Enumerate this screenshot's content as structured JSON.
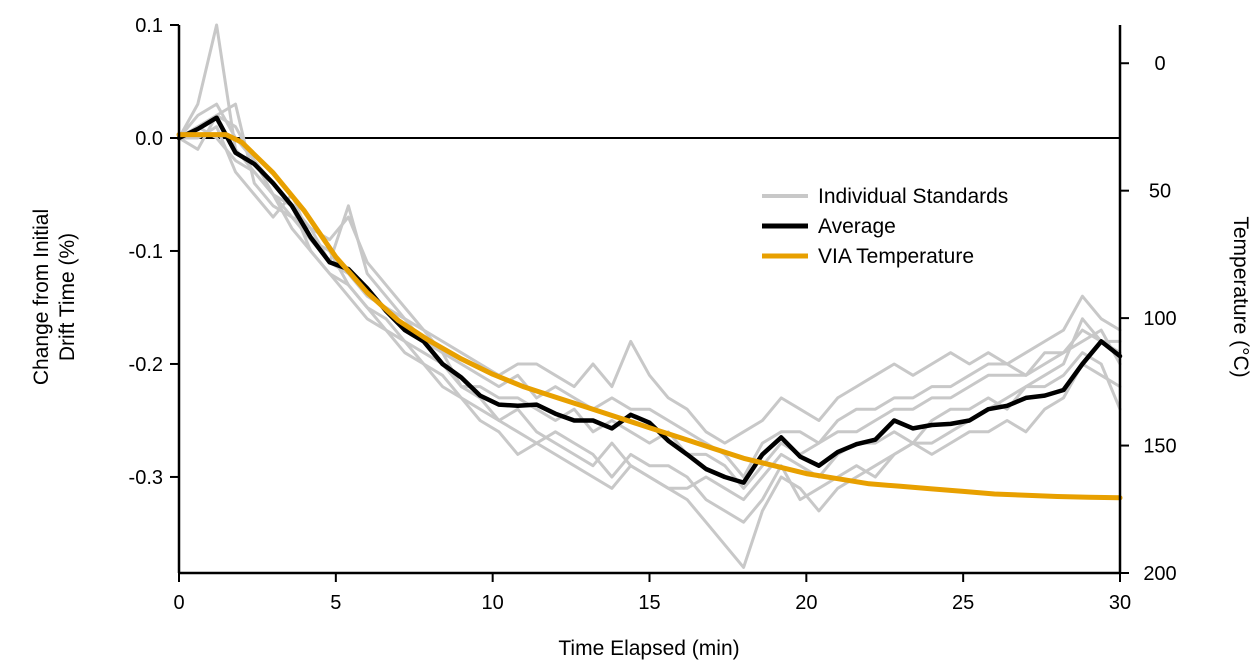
{
  "chart_data": {
    "type": "line",
    "xlabel": "Time Elapsed (min)",
    "ylabel_lines": [
      "Change from Initial",
      "Drift Time (%)"
    ],
    "y2label": "Temperature (°C)",
    "xlim": [
      0,
      30
    ],
    "ylim": [
      -0.385,
      0.1
    ],
    "y2lim": [
      -15,
      200
    ],
    "y2_inverted": true,
    "x_ticks": [
      0,
      5,
      10,
      15,
      20,
      25,
      30
    ],
    "x_tick_labels": [
      "0",
      "5",
      "10",
      "15",
      "20",
      "25",
      "30"
    ],
    "y_ticks": [
      0.1,
      0.0,
      -0.1,
      -0.2,
      -0.3
    ],
    "y_tick_labels": [
      "0.1",
      "0.0",
      "-0.1",
      "-0.2",
      "-0.3"
    ],
    "y2_ticks": [
      0,
      50,
      100,
      150,
      200
    ],
    "y2_tick_labels": [
      "0",
      "50",
      "100",
      "150",
      "200"
    ],
    "reference_line_y": 0.0,
    "legend": {
      "placement": "upper-right",
      "entries": [
        {
          "label": "Individual Standards",
          "color": "#c8c8c8"
        },
        {
          "label": "Average",
          "color": "#000000"
        },
        {
          "label": "VIA Temperature",
          "color": "#e8a000"
        }
      ]
    },
    "colors": {
      "standards": "#c8c8c8",
      "average": "#000000",
      "temperature": "#e8a000"
    },
    "series": [
      {
        "name": "Individual Standards",
        "x": [
          0,
          0.6,
          1.2,
          1.8,
          2.4,
          3.0,
          3.6,
          4.2,
          4.8,
          5.4,
          6.0,
          6.6,
          7.2,
          7.8,
          8.4,
          9.0,
          9.6,
          10.2,
          10.8,
          11.4,
          12.0,
          12.6,
          13.2,
          13.8,
          14.4,
          15.0,
          15.6,
          16.2,
          16.8,
          17.4,
          18.0,
          18.6,
          19.2,
          19.8,
          20.4,
          21.0,
          21.6,
          22.2,
          22.8,
          23.4,
          24.0,
          24.6,
          25.2,
          25.8,
          26.4,
          27.0,
          27.6,
          28.2,
          28.8,
          29.4,
          30.0
        ],
        "values": [
          0.0,
          0.03,
          0.1,
          -0.01,
          -0.03,
          -0.05,
          -0.06,
          -0.1,
          -0.12,
          -0.13,
          -0.15,
          -0.16,
          -0.18,
          -0.19,
          -0.2,
          -0.22,
          -0.23,
          -0.25,
          -0.24,
          -0.26,
          -0.27,
          -0.28,
          -0.29,
          -0.27,
          -0.29,
          -0.3,
          -0.31,
          -0.32,
          -0.34,
          -0.36,
          -0.38,
          -0.33,
          -0.3,
          -0.31,
          -0.33,
          -0.31,
          -0.3,
          -0.29,
          -0.28,
          -0.27,
          -0.27,
          -0.26,
          -0.25,
          -0.24,
          -0.23,
          -0.22,
          -0.21,
          -0.2,
          -0.16,
          -0.18,
          -0.19
        ]
      },
      {
        "name": "",
        "x": [
          0,
          0.6,
          1.2,
          1.8,
          2.4,
          3.0,
          3.6,
          4.2,
          4.8,
          5.4,
          6.0,
          6.6,
          7.2,
          7.8,
          8.4,
          9.0,
          9.6,
          10.2,
          10.8,
          11.4,
          12.0,
          12.6,
          13.2,
          13.8,
          14.4,
          15.0,
          15.6,
          16.2,
          16.8,
          17.4,
          18.0,
          18.6,
          19.2,
          19.8,
          20.4,
          21.0,
          21.6,
          22.2,
          22.8,
          23.4,
          24.0,
          24.6,
          25.2,
          25.8,
          26.4,
          27.0,
          27.6,
          28.2,
          28.8,
          29.4,
          30.0
        ],
        "values": [
          0.0,
          -0.01,
          0.02,
          0.03,
          -0.04,
          -0.06,
          -0.07,
          -0.08,
          -0.09,
          -0.07,
          -0.11,
          -0.13,
          -0.15,
          -0.17,
          -0.18,
          -0.19,
          -0.2,
          -0.21,
          -0.2,
          -0.2,
          -0.21,
          -0.22,
          -0.2,
          -0.22,
          -0.18,
          -0.21,
          -0.23,
          -0.24,
          -0.26,
          -0.27,
          -0.26,
          -0.25,
          -0.23,
          -0.24,
          -0.25,
          -0.23,
          -0.22,
          -0.21,
          -0.2,
          -0.21,
          -0.2,
          -0.19,
          -0.2,
          -0.19,
          -0.2,
          -0.19,
          -0.18,
          -0.17,
          -0.14,
          -0.16,
          -0.17
        ]
      },
      {
        "name": "",
        "x": [
          0,
          0.6,
          1.2,
          1.8,
          2.4,
          3.0,
          3.6,
          4.2,
          4.8,
          5.4,
          6.0,
          6.6,
          7.2,
          7.8,
          8.4,
          9.0,
          9.6,
          10.2,
          10.8,
          11.4,
          12.0,
          12.6,
          13.2,
          13.8,
          14.4,
          15.0,
          15.6,
          16.2,
          16.8,
          17.4,
          18.0,
          18.6,
          19.2,
          19.8,
          20.4,
          21.0,
          21.6,
          22.2,
          22.8,
          23.4,
          24.0,
          24.6,
          25.2,
          25.8,
          26.4,
          27.0,
          27.6,
          28.2,
          28.8,
          29.4,
          30.0
        ],
        "values": [
          0.0,
          0.01,
          0.0,
          -0.02,
          -0.03,
          -0.05,
          -0.08,
          -0.1,
          -0.12,
          -0.14,
          -0.16,
          -0.17,
          -0.19,
          -0.2,
          -0.22,
          -0.23,
          -0.24,
          -0.25,
          -0.26,
          -0.27,
          -0.26,
          -0.27,
          -0.28,
          -0.3,
          -0.28,
          -0.29,
          -0.29,
          -0.3,
          -0.32,
          -0.33,
          -0.34,
          -0.32,
          -0.29,
          -0.32,
          -0.31,
          -0.3,
          -0.29,
          -0.3,
          -0.28,
          -0.27,
          -0.28,
          -0.27,
          -0.26,
          -0.26,
          -0.25,
          -0.26,
          -0.24,
          -0.23,
          -0.2,
          -0.21,
          -0.22
        ]
      },
      {
        "name": "",
        "x": [
          0,
          0.6,
          1.2,
          1.8,
          2.4,
          3.0,
          3.6,
          4.2,
          4.8,
          5.4,
          6.0,
          6.6,
          7.2,
          7.8,
          8.4,
          9.0,
          9.6,
          10.2,
          10.8,
          11.4,
          12.0,
          12.6,
          13.2,
          13.8,
          14.4,
          15.0,
          15.6,
          16.2,
          16.8,
          17.4,
          18.0,
          18.6,
          19.2,
          19.8,
          20.4,
          21.0,
          21.6,
          22.2,
          22.8,
          23.4,
          24.0,
          24.6,
          25.2,
          25.8,
          26.4,
          27.0,
          27.6,
          28.2,
          28.8,
          29.4,
          30.0
        ],
        "values": [
          0.0,
          0.02,
          0.03,
          0.0,
          -0.02,
          -0.05,
          -0.07,
          -0.09,
          -0.11,
          -0.12,
          -0.14,
          -0.15,
          -0.16,
          -0.18,
          -0.19,
          -0.22,
          -0.22,
          -0.23,
          -0.23,
          -0.24,
          -0.25,
          -0.24,
          -0.26,
          -0.25,
          -0.26,
          -0.27,
          -0.26,
          -0.28,
          -0.28,
          -0.29,
          -0.31,
          -0.29,
          -0.27,
          -0.28,
          -0.27,
          -0.26,
          -0.26,
          -0.25,
          -0.24,
          -0.24,
          -0.23,
          -0.23,
          -0.22,
          -0.21,
          -0.21,
          -0.21,
          -0.2,
          -0.19,
          -0.18,
          -0.17,
          -0.2
        ]
      },
      {
        "name": "",
        "x": [
          0,
          0.6,
          1.2,
          1.8,
          2.4,
          3.0,
          3.6,
          4.2,
          4.8,
          5.4,
          6.0,
          6.6,
          7.2,
          7.8,
          8.4,
          9.0,
          9.6,
          10.2,
          10.8,
          11.4,
          12.0,
          12.6,
          13.2,
          13.8,
          14.4,
          15.0,
          15.6,
          16.2,
          16.8,
          17.4,
          18.0,
          18.6,
          19.2,
          19.8,
          20.4,
          21.0,
          21.6,
          22.2,
          22.8,
          23.4,
          24.0,
          24.6,
          25.2,
          25.8,
          26.4,
          27.0,
          27.6,
          28.2,
          28.8,
          29.4,
          30.0
        ],
        "values": [
          0.0,
          0.0,
          0.01,
          -0.03,
          -0.05,
          -0.07,
          -0.05,
          -0.09,
          -0.1,
          -0.13,
          -0.15,
          -0.17,
          -0.18,
          -0.2,
          -0.21,
          -0.23,
          -0.25,
          -0.26,
          -0.28,
          -0.27,
          -0.28,
          -0.29,
          -0.3,
          -0.31,
          -0.29,
          -0.3,
          -0.31,
          -0.31,
          -0.3,
          -0.31,
          -0.32,
          -0.3,
          -0.28,
          -0.29,
          -0.3,
          -0.28,
          -0.27,
          -0.27,
          -0.26,
          -0.27,
          -0.25,
          -0.24,
          -0.24,
          -0.23,
          -0.24,
          -0.22,
          -0.22,
          -0.21,
          -0.19,
          -0.2,
          -0.24
        ]
      },
      {
        "name": "",
        "x": [
          0,
          0.6,
          1.2,
          1.8,
          2.4,
          3.0,
          3.6,
          4.2,
          4.8,
          5.4,
          6.0,
          6.6,
          7.2,
          7.8,
          8.4,
          9.0,
          9.6,
          10.2,
          10.8,
          11.4,
          12.0,
          12.6,
          13.2,
          13.8,
          14.4,
          15.0,
          15.6,
          16.2,
          16.8,
          17.4,
          18.0,
          18.6,
          19.2,
          19.8,
          20.4,
          21.0,
          21.6,
          22.2,
          22.8,
          23.4,
          24.0,
          24.6,
          25.2,
          25.8,
          26.4,
          27.0,
          27.6,
          28.2,
          28.8,
          29.4,
          30.0
        ],
        "values": [
          0.0,
          0.01,
          0.02,
          0.01,
          -0.02,
          -0.04,
          -0.06,
          -0.08,
          -0.11,
          -0.06,
          -0.12,
          -0.14,
          -0.16,
          -0.17,
          -0.19,
          -0.2,
          -0.21,
          -0.22,
          -0.21,
          -0.23,
          -0.22,
          -0.23,
          -0.24,
          -0.23,
          -0.24,
          -0.24,
          -0.25,
          -0.26,
          -0.27,
          -0.28,
          -0.3,
          -0.27,
          -0.26,
          -0.26,
          -0.27,
          -0.25,
          -0.24,
          -0.24,
          -0.23,
          -0.23,
          -0.22,
          -0.22,
          -0.21,
          -0.2,
          -0.2,
          -0.21,
          -0.19,
          -0.19,
          -0.17,
          -0.18,
          -0.18
        ]
      },
      {
        "name": "Average",
        "x": [
          0,
          0.6,
          1.2,
          1.8,
          2.4,
          3.0,
          3.6,
          4.2,
          4.8,
          5.4,
          6.0,
          6.6,
          7.2,
          7.8,
          8.4,
          9.0,
          9.6,
          10.2,
          10.8,
          11.4,
          12.0,
          12.6,
          13.2,
          13.8,
          14.4,
          15.0,
          15.6,
          16.2,
          16.8,
          17.4,
          18.0,
          18.6,
          19.2,
          19.8,
          20.4,
          21.0,
          21.6,
          22.2,
          22.8,
          23.4,
          24.0,
          24.6,
          25.2,
          25.8,
          26.4,
          27.0,
          27.6,
          28.2,
          28.8,
          29.4,
          30.0
        ],
        "values": [
          0.0,
          0.008,
          0.018,
          -0.013,
          -0.023,
          -0.04,
          -0.06,
          -0.088,
          -0.11,
          -0.116,
          -0.133,
          -0.153,
          -0.17,
          -0.18,
          -0.2,
          -0.212,
          -0.228,
          -0.236,
          -0.237,
          -0.236,
          -0.244,
          -0.25,
          -0.25,
          -0.257,
          -0.245,
          -0.252,
          -0.268,
          -0.28,
          -0.293,
          -0.3,
          -0.305,
          -0.28,
          -0.265,
          -0.282,
          -0.29,
          -0.278,
          -0.271,
          -0.267,
          -0.25,
          -0.257,
          -0.254,
          -0.253,
          -0.25,
          -0.24,
          -0.237,
          -0.23,
          -0.228,
          -0.223,
          -0.2,
          -0.18,
          -0.193
        ]
      },
      {
        "name": "VIA Temperature",
        "axis": "right",
        "x": [
          0,
          1,
          1.5,
          2,
          3,
          4,
          5,
          6,
          7,
          8,
          9,
          10,
          11,
          12,
          13,
          14,
          15,
          16,
          17,
          18,
          19,
          20,
          21,
          22,
          23,
          24,
          25,
          26,
          27,
          28,
          29,
          30
        ],
        "values": [
          28,
          28,
          28,
          31,
          43,
          58,
          76,
          90,
          101,
          109,
          116,
          122,
          127,
          131,
          135,
          139,
          143,
          147,
          151,
          155,
          158,
          161,
          163,
          165,
          166,
          167,
          168,
          169,
          169.5,
          170,
          170.3,
          170.5
        ]
      }
    ]
  }
}
